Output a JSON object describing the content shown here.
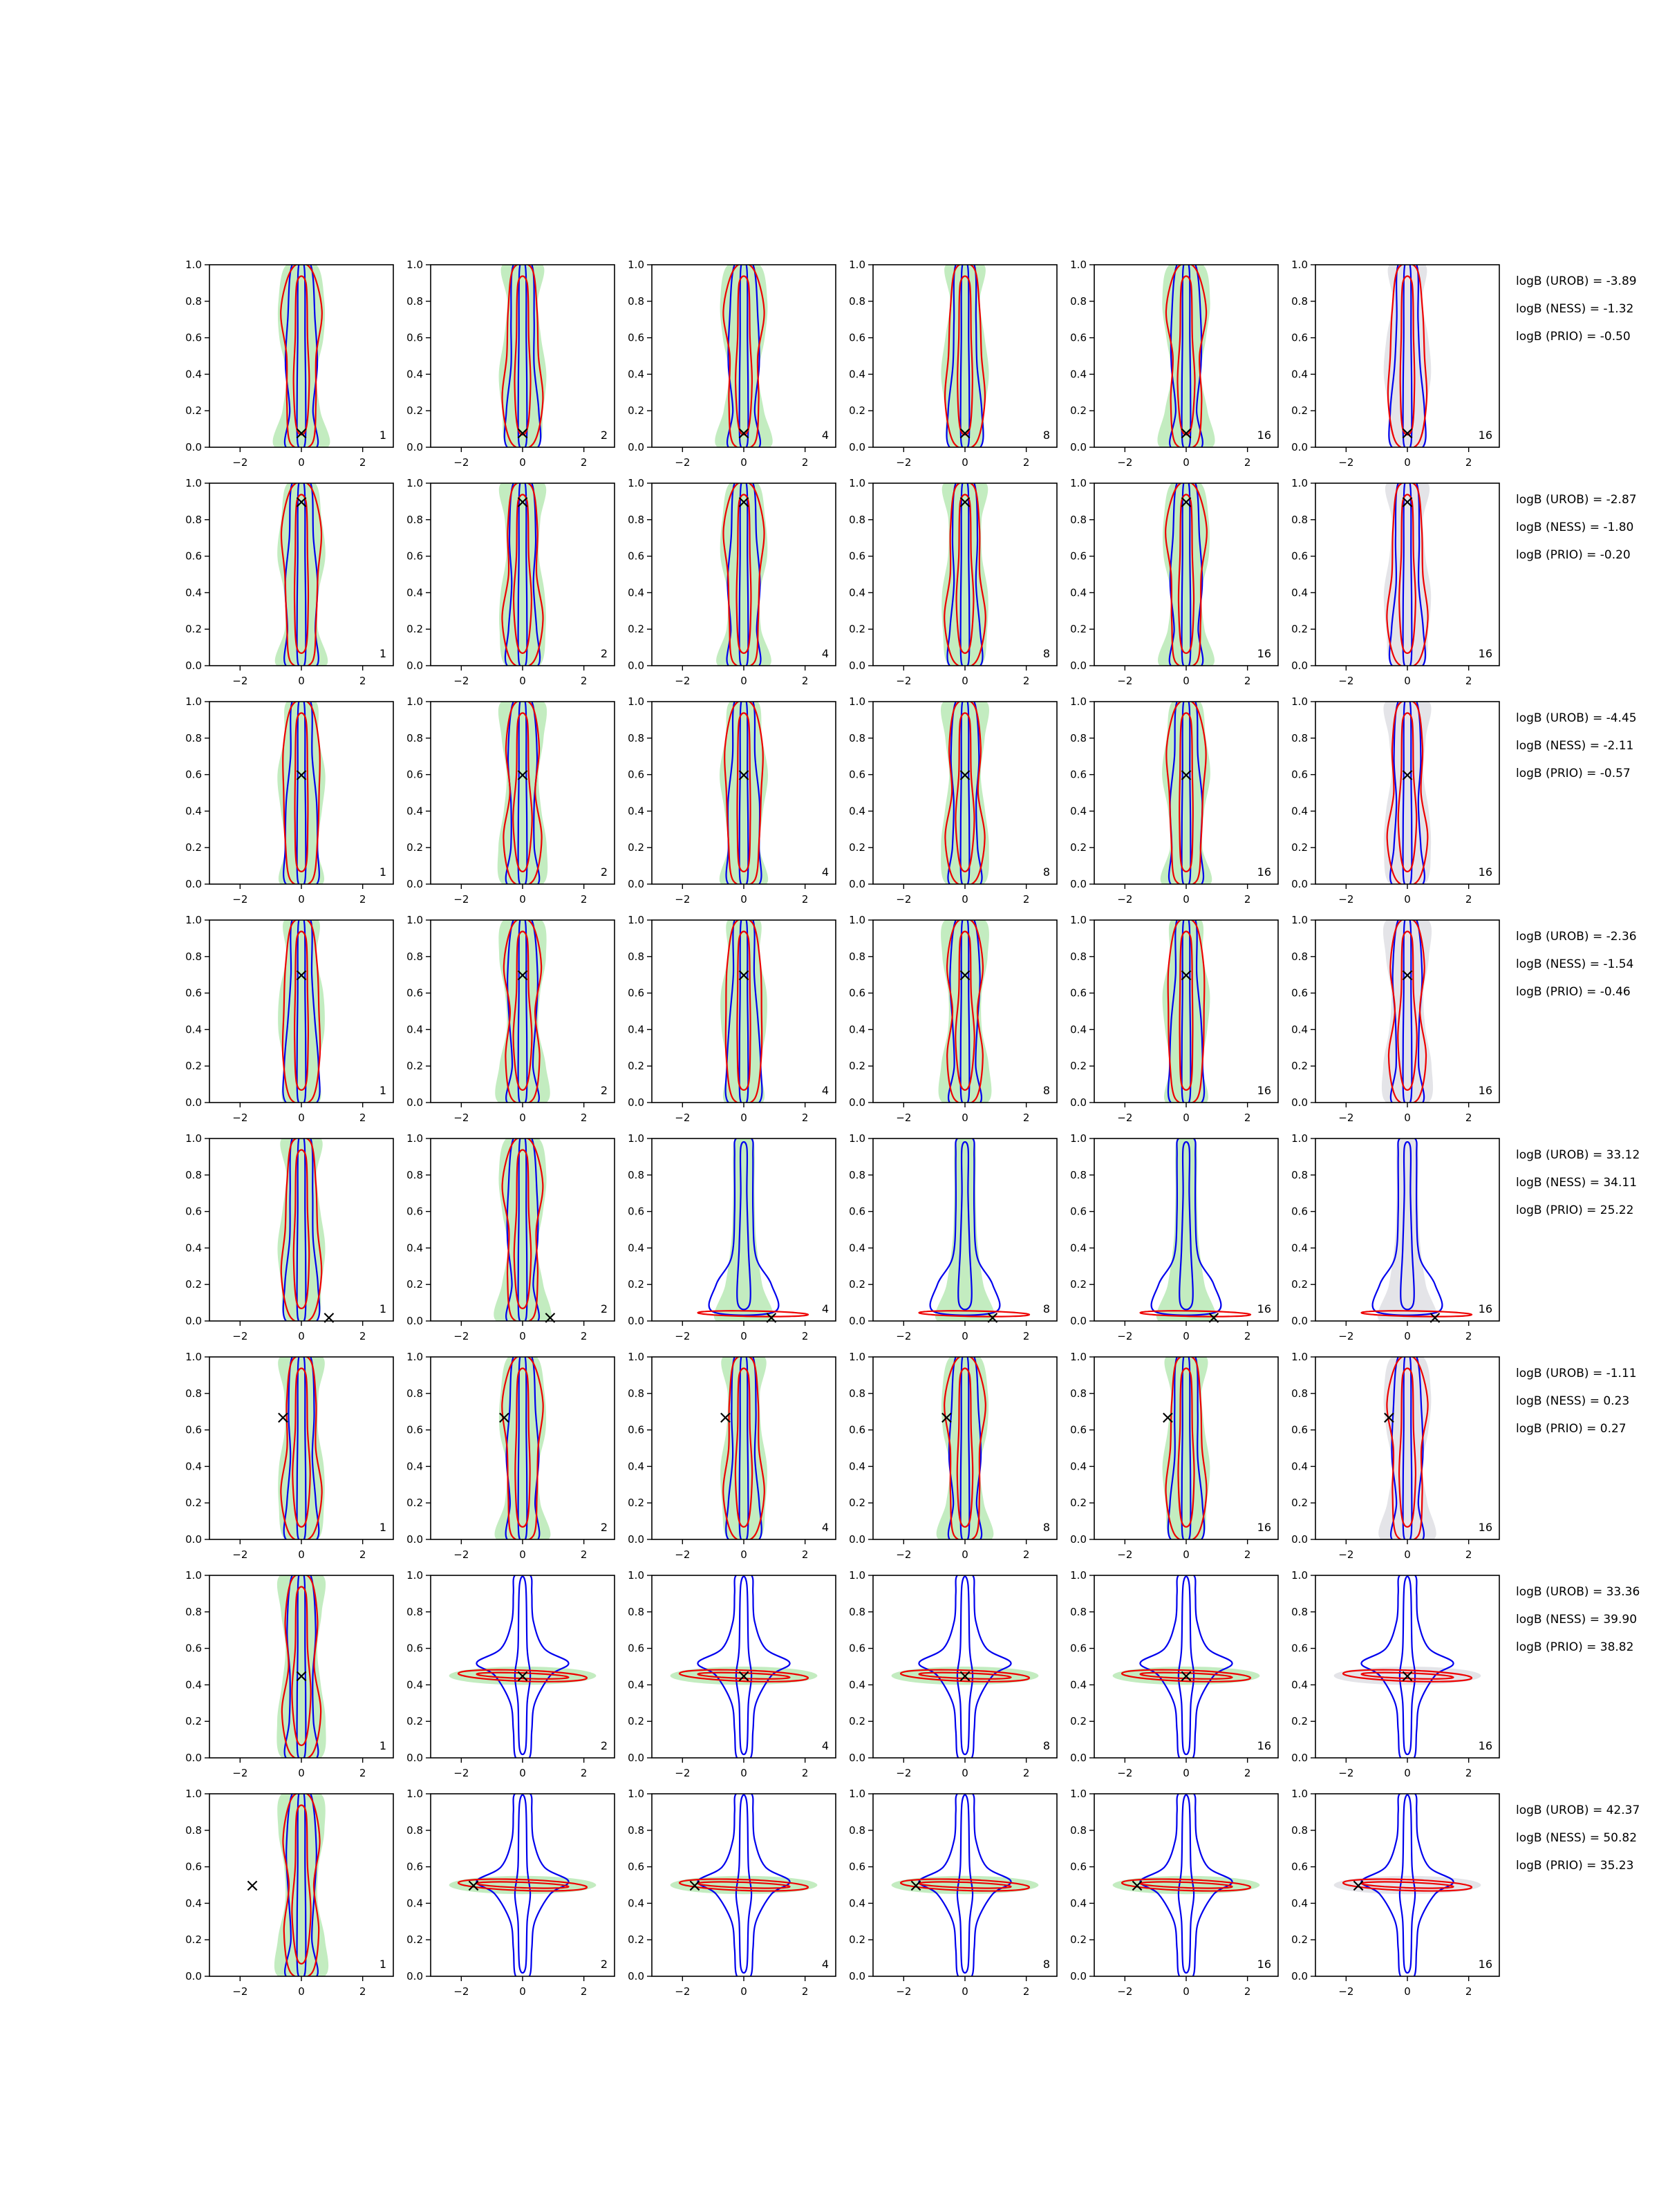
{
  "figure": {
    "axis_x_ticks": [
      "−2",
      "0",
      "2"
    ],
    "axis_y_ticks": [
      "0.0",
      "0.2",
      "0.4",
      "0.6",
      "0.8",
      "1.0"
    ],
    "column_labels": [
      "1",
      "2",
      "4",
      "8",
      "16",
      "16"
    ],
    "rows": [
      {
        "marker": [
          0.0,
          0.08
        ],
        "annotations": [
          "logB (UROB) = -3.89",
          "logB (NESS) = -1.32",
          "logB (PRIO) = -0.50"
        ]
      },
      {
        "marker": [
          0.0,
          0.9
        ],
        "annotations": [
          "logB (UROB) = -2.87",
          "logB (NESS) = -1.80",
          "logB (PRIO) = -0.20"
        ]
      },
      {
        "marker": [
          0.0,
          0.6
        ],
        "annotations": [
          "logB (UROB) = -4.45",
          "logB (NESS) = -2.11",
          "logB (PRIO) = -0.57"
        ]
      },
      {
        "marker": [
          0.0,
          0.7
        ],
        "annotations": [
          "logB (UROB) = -2.36",
          "logB (NESS) = -1.54",
          "logB (PRIO) = -0.46"
        ]
      },
      {
        "marker": [
          0.9,
          0.02
        ],
        "annotations": [
          "logB (UROB) = 33.12",
          "logB (NESS) = 34.11",
          "logB (PRIO) = 25.22"
        ]
      },
      {
        "marker": [
          -0.6,
          0.67
        ],
        "annotations": [
          "logB (UROB) = -1.11",
          "logB (NESS) = 0.23",
          "logB (PRIO) = 0.27"
        ]
      },
      {
        "marker": [
          0.0,
          0.45
        ],
        "annotations": [
          "logB (UROB) = 33.36",
          "logB (NESS) = 39.90",
          "logB (PRIO) = 38.82"
        ]
      },
      {
        "marker": [
          -1.6,
          0.5
        ],
        "annotations": [
          "logB (UROB) = 42.37",
          "logB (NESS) = 50.82",
          "logB (PRIO) = 35.23"
        ]
      }
    ]
  },
  "chart_data": {
    "type": "contour",
    "grid": {
      "rows": 8,
      "cols": 6
    },
    "xlim": [
      -3,
      3
    ],
    "ylim": [
      0,
      1
    ],
    "xticks": [
      -2,
      0,
      2
    ],
    "yticks": [
      0.0,
      0.2,
      0.4,
      0.6,
      0.8,
      1.0
    ],
    "grid_lines": false,
    "colors": {
      "fill_green": "#c3ecc0",
      "fill_gray": "#e4e4e8",
      "contour_blue": "#0000ee",
      "contour_red": "#ee0000",
      "marker": "#000000"
    },
    "marker_symbol": "×"
  }
}
